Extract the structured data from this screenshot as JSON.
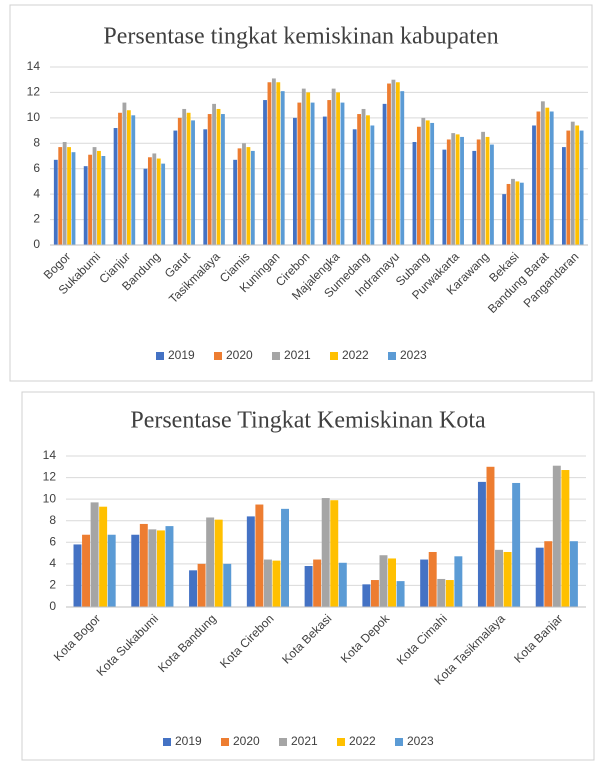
{
  "chart_data": [
    {
      "type": "bar",
      "title": "Persentase tingkat kemiskinan kabupaten",
      "categories": [
        "Bogor",
        "Sukabumi",
        "Cianjur",
        "Bandung",
        "Garut",
        "Tasikmalaya",
        "Ciamis",
        "Kuningan",
        "Cirebon",
        "Majalengka",
        "Sumedang",
        "Indramayu",
        "Subang",
        "Purwakarta",
        "Karawang",
        "Bekasi",
        "Bandung Barat",
        "Pangandaran"
      ],
      "series": [
        {
          "name": "2019",
          "color": "#4472c4",
          "values": [
            6.7,
            6.2,
            9.2,
            6.0,
            9.0,
            9.1,
            6.7,
            11.4,
            10.0,
            10.1,
            9.1,
            11.1,
            8.1,
            7.5,
            7.4,
            4.0,
            9.4,
            7.7
          ]
        },
        {
          "name": "2020",
          "color": "#ed7d31",
          "values": [
            7.7,
            7.1,
            10.4,
            6.9,
            10.0,
            10.3,
            7.6,
            12.8,
            11.2,
            11.4,
            10.3,
            12.7,
            9.3,
            8.3,
            8.3,
            4.8,
            10.5,
            9.0
          ]
        },
        {
          "name": "2021",
          "color": "#a5a5a5",
          "values": [
            8.1,
            7.7,
            11.2,
            7.2,
            10.7,
            11.1,
            8.0,
            13.1,
            12.3,
            12.3,
            10.7,
            13.0,
            10.0,
            8.8,
            8.9,
            5.2,
            11.3,
            9.7
          ]
        },
        {
          "name": "2022",
          "color": "#ffc000",
          "values": [
            7.7,
            7.4,
            10.6,
            6.8,
            10.4,
            10.7,
            7.7,
            12.8,
            12.0,
            12.0,
            10.2,
            12.8,
            9.8,
            8.7,
            8.5,
            5.0,
            10.8,
            9.4
          ]
        },
        {
          "name": "2023",
          "color": "#5b9bd5",
          "values": [
            7.3,
            7.0,
            10.2,
            6.4,
            9.8,
            10.3,
            7.4,
            12.1,
            11.2,
            11.2,
            9.4,
            12.1,
            9.6,
            8.5,
            7.9,
            4.9,
            10.5,
            9.0
          ]
        }
      ],
      "ylim": [
        0,
        14
      ],
      "yticks": [
        0,
        2,
        4,
        6,
        8,
        10,
        12,
        14
      ],
      "grid": true,
      "legend": "bottom"
    },
    {
      "type": "bar",
      "title": "Persentase Tingkat Kemiskinan Kota",
      "categories": [
        "Kota Bogor",
        "Kota Sukabumi",
        "Kota Bandung",
        "Kota Cirebon",
        "Kota Bekasi",
        "Kota Depok",
        "Kota Cimahi",
        "Kota Tasikmalaya",
        "Kota Banjar"
      ],
      "series": [
        {
          "name": "2019",
          "color": "#4472c4",
          "values": [
            5.8,
            6.7,
            3.4,
            8.4,
            3.8,
            2.1,
            4.4,
            11.6,
            5.5
          ]
        },
        {
          "name": "2020",
          "color": "#ed7d31",
          "values": [
            6.7,
            7.7,
            4.0,
            9.5,
            4.4,
            2.5,
            5.1,
            13.0,
            6.1
          ]
        },
        {
          "name": "2021",
          "color": "#a5a5a5",
          "values": [
            9.7,
            7.2,
            8.3,
            4.4,
            10.1,
            4.8,
            2.6,
            5.3,
            13.1
          ]
        },
        {
          "name": "2022",
          "color": "#ffc000",
          "values": [
            9.3,
            7.1,
            8.1,
            4.3,
            9.9,
            4.5,
            2.5,
            5.1,
            12.7
          ]
        },
        {
          "name": "2023",
          "color": "#5b9bd5",
          "values": [
            6.7,
            7.5,
            4.0,
            9.1,
            4.1,
            2.4,
            4.7,
            11.5,
            6.1
          ]
        }
      ],
      "ylim": [
        0,
        14
      ],
      "yticks": [
        0,
        2,
        4,
        6,
        8,
        10,
        12,
        14
      ],
      "grid": true,
      "legend": "bottom"
    }
  ]
}
